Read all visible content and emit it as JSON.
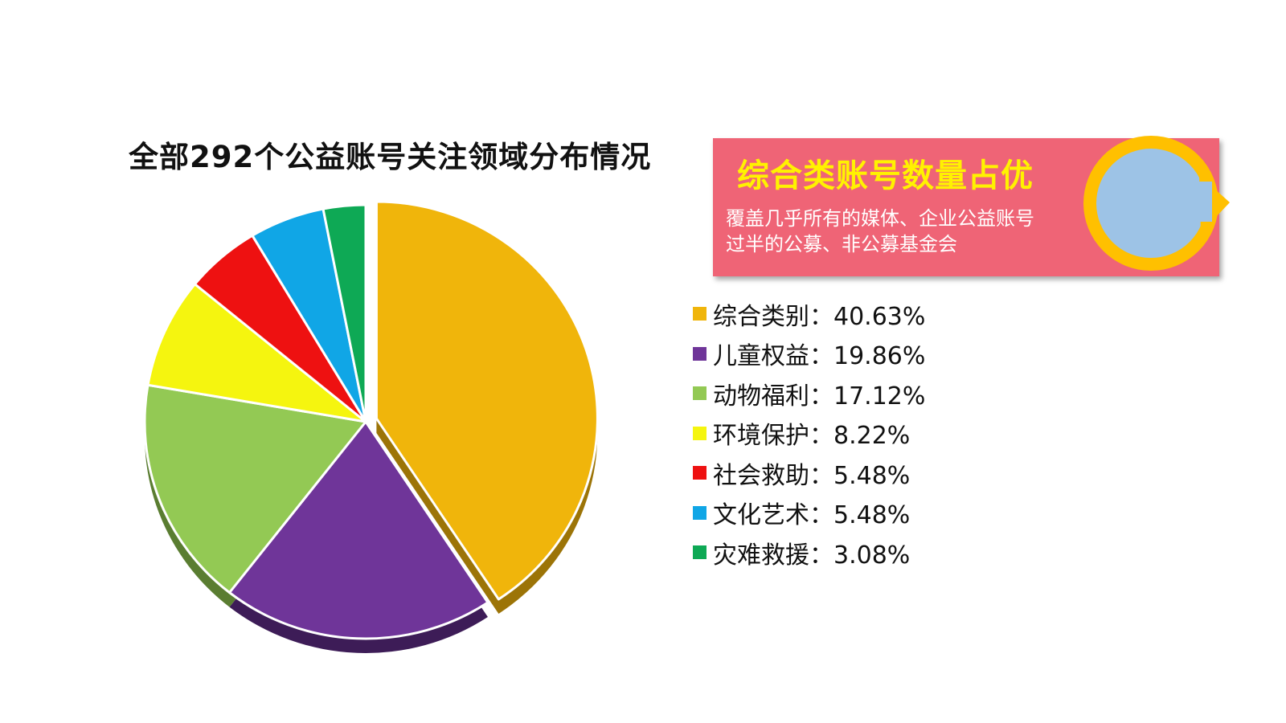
{
  "chart_data": {
    "type": "pie",
    "title": "全部292个公益账号关注领域分布情况",
    "slices": [
      {
        "label": "综合类别",
        "value": 40.63,
        "display": "综合类别：40.63%",
        "color": "#f0b50b",
        "side": "#9c7407"
      },
      {
        "label": "儿童权益",
        "value": 19.86,
        "display": "儿童权益：19.86%",
        "color": "#6f3599",
        "side": "#3d1c57"
      },
      {
        "label": "动物福利",
        "value": 17.12,
        "display": "动物福利：17.12%",
        "color": "#93c954",
        "side": "#5a7d31"
      },
      {
        "label": "环境保护",
        "value": 8.22,
        "display": "环境保护：8.22%",
        "color": "#f5f50f",
        "side": "#9a9a06"
      },
      {
        "label": "社会救助",
        "value": 5.48,
        "display": "社会救助：5.48%",
        "color": "#ee1111",
        "side": "#8a0808"
      },
      {
        "label": "文化艺术",
        "value": 5.48,
        "display": "文化艺术：5.48%",
        "color": "#10a6e6",
        "side": "#0a6790"
      },
      {
        "label": "灾难救援",
        "value": 3.08,
        "display": "灾难救援：3.08%",
        "color": "#0ea955",
        "side": "#076634"
      }
    ],
    "legend_placement": "right"
  },
  "callout": {
    "heading": "综合类账号数量占优",
    "line1": "覆盖几乎所有的媒体、企业公益账号",
    "line2": "过半的公募、非公募基金会",
    "background": "#ef6476",
    "heading_color": "#fff200",
    "circle_fill": "#9dc3e6",
    "arrow_color": "#ffc000"
  }
}
